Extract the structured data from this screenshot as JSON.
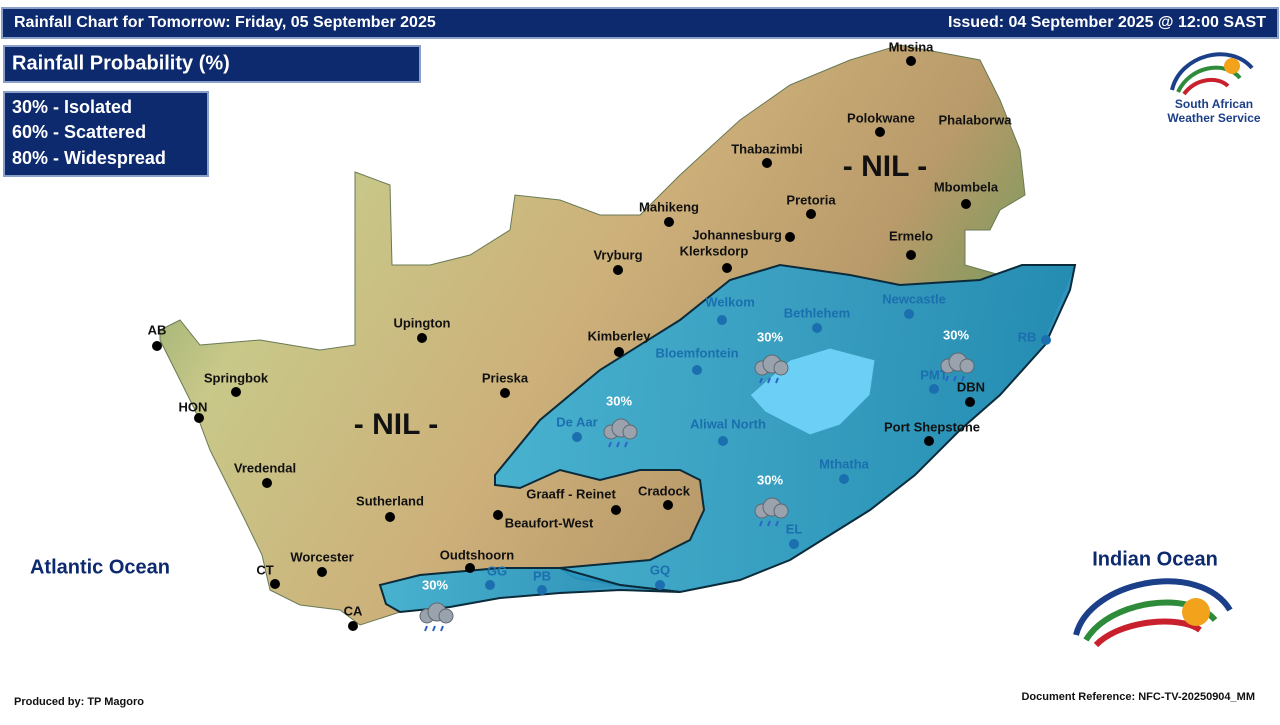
{
  "header": {
    "title": "Rainfall Chart for Tomorrow: Friday, 05 September 2025",
    "issued": "Issued: 04 September 2025 @ 12:00 SAST"
  },
  "legend": {
    "title": "Rainfall Probability (%)",
    "items": [
      "30% - Isolated",
      "60% - Scattered",
      "80% - Widespread"
    ]
  },
  "logo": {
    "line1": "South African",
    "line2": "Weather Service"
  },
  "regions": {
    "nil_north": "- NIL -",
    "nil_west": "- NIL -"
  },
  "oceans": {
    "atlantic": "Atlantic Ocean",
    "indian": "Indian Ocean"
  },
  "probability_labels": [
    "30%",
    "30%",
    "30%",
    "30%",
    "30%"
  ],
  "cities": [
    {
      "name": "Musina"
    },
    {
      "name": "Polokwane"
    },
    {
      "name": "Phalaborwa"
    },
    {
      "name": "Thabazimbi"
    },
    {
      "name": "Mbombela"
    },
    {
      "name": "Pretoria"
    },
    {
      "name": "Mahikeng"
    },
    {
      "name": "Johannesburg"
    },
    {
      "name": "Klerksdorp"
    },
    {
      "name": "Ermelo"
    },
    {
      "name": "Vryburg"
    },
    {
      "name": "Welkom"
    },
    {
      "name": "Bethlehem"
    },
    {
      "name": "Newcastle"
    },
    {
      "name": "Kimberley"
    },
    {
      "name": "Upington"
    },
    {
      "name": "AB"
    },
    {
      "name": "Springbok"
    },
    {
      "name": "Prieska"
    },
    {
      "name": "Bloemfontein"
    },
    {
      "name": "PMT"
    },
    {
      "name": "RB"
    },
    {
      "name": "DBN"
    },
    {
      "name": "HON"
    },
    {
      "name": "De Aar"
    },
    {
      "name": "Aliwal North"
    },
    {
      "name": "Port Shepstone"
    },
    {
      "name": "Mthatha"
    },
    {
      "name": "Vredendal"
    },
    {
      "name": "Sutherland"
    },
    {
      "name": "Graaff - Reinet"
    },
    {
      "name": "Cradock"
    },
    {
      "name": "Beaufort-West"
    },
    {
      "name": "EL"
    },
    {
      "name": "Oudtshoorn"
    },
    {
      "name": "Worcester"
    },
    {
      "name": "CT"
    },
    {
      "name": "GG"
    },
    {
      "name": "PB"
    },
    {
      "name": "GQ"
    },
    {
      "name": "CA"
    }
  ],
  "footer": {
    "produced_by": "Produced by: TP Magoro",
    "reference": "Document Reference: NFC-TV-20250904_MM"
  }
}
